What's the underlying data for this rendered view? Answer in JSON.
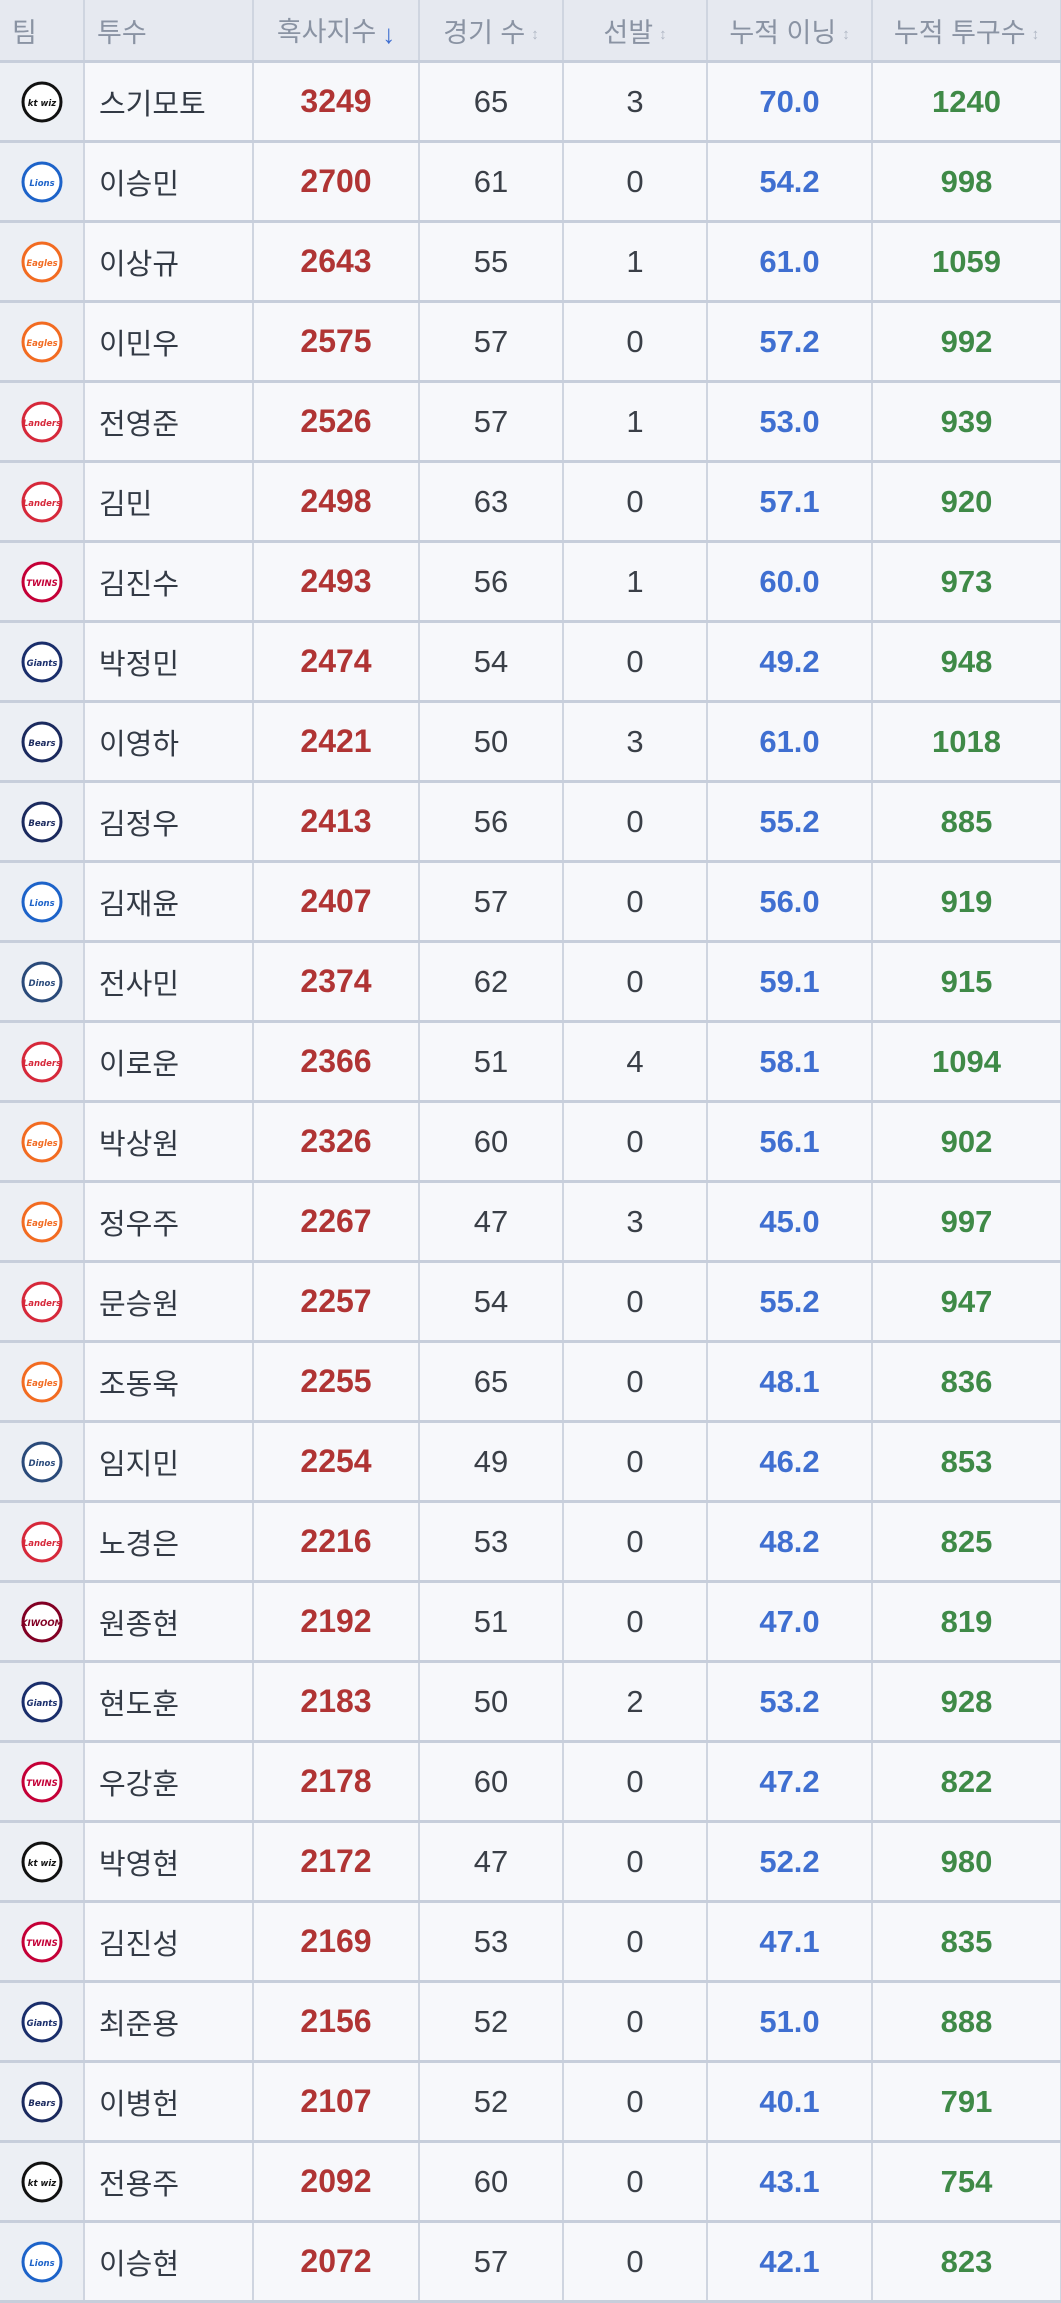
{
  "headers": {
    "team": "팀",
    "pitcher": "투수",
    "ksi": "혹사지수",
    "games": "경기 수",
    "starts": "선발",
    "innings": "누적 이닝",
    "pitches": "누적 투구수"
  },
  "sort": {
    "active_column": "ksi",
    "direction": "desc"
  },
  "team_logos": {
    "ktwiz": {
      "text": "kt wiz",
      "color": "#111111",
      "icon": "ktwiz-logo-icon"
    },
    "lions": {
      "text": "Lions",
      "color": "#1d63c9",
      "icon": "lions-logo-icon"
    },
    "eagles": {
      "text": "Eagles",
      "color": "#f26b21",
      "icon": "eagles-logo-icon"
    },
    "landers": {
      "text": "Landers",
      "color": "#d6283a",
      "icon": "landers-logo-icon"
    },
    "twins": {
      "text": "TWINS",
      "color": "#c40037",
      "icon": "twins-logo-icon"
    },
    "giants": {
      "text": "Giants",
      "color": "#1a2e6b",
      "icon": "giants-logo-icon"
    },
    "bears": {
      "text": "Bears",
      "color": "#1b2a5e",
      "icon": "bears-logo-icon"
    },
    "dinos": {
      "text": "Dinos",
      "color": "#2a4a7a",
      "icon": "dinos-logo-icon"
    },
    "kiwoom": {
      "text": "KIWOOM",
      "color": "#820024",
      "icon": "kiwoom-logo-icon"
    }
  },
  "rows": [
    {
      "team": "ktwiz",
      "name": "스기모토",
      "ksi": "3249",
      "games": "65",
      "starts": "3",
      "innings": "70.0",
      "pitches": "1240"
    },
    {
      "team": "lions",
      "name": "이승민",
      "ksi": "2700",
      "games": "61",
      "starts": "0",
      "innings": "54.2",
      "pitches": "998"
    },
    {
      "team": "eagles",
      "name": "이상규",
      "ksi": "2643",
      "games": "55",
      "starts": "1",
      "innings": "61.0",
      "pitches": "1059"
    },
    {
      "team": "eagles",
      "name": "이민우",
      "ksi": "2575",
      "games": "57",
      "starts": "0",
      "innings": "57.2",
      "pitches": "992"
    },
    {
      "team": "landers",
      "name": "전영준",
      "ksi": "2526",
      "games": "57",
      "starts": "1",
      "innings": "53.0",
      "pitches": "939"
    },
    {
      "team": "landers",
      "name": "김민",
      "ksi": "2498",
      "games": "63",
      "starts": "0",
      "innings": "57.1",
      "pitches": "920"
    },
    {
      "team": "twins",
      "name": "김진수",
      "ksi": "2493",
      "games": "56",
      "starts": "1",
      "innings": "60.0",
      "pitches": "973"
    },
    {
      "team": "giants",
      "name": "박정민",
      "ksi": "2474",
      "games": "54",
      "starts": "0",
      "innings": "49.2",
      "pitches": "948"
    },
    {
      "team": "bears",
      "name": "이영하",
      "ksi": "2421",
      "games": "50",
      "starts": "3",
      "innings": "61.0",
      "pitches": "1018"
    },
    {
      "team": "bears",
      "name": "김정우",
      "ksi": "2413",
      "games": "56",
      "starts": "0",
      "innings": "55.2",
      "pitches": "885"
    },
    {
      "team": "lions",
      "name": "김재윤",
      "ksi": "2407",
      "games": "57",
      "starts": "0",
      "innings": "56.0",
      "pitches": "919"
    },
    {
      "team": "dinos",
      "name": "전사민",
      "ksi": "2374",
      "games": "62",
      "starts": "0",
      "innings": "59.1",
      "pitches": "915"
    },
    {
      "team": "landers",
      "name": "이로운",
      "ksi": "2366",
      "games": "51",
      "starts": "4",
      "innings": "58.1",
      "pitches": "1094"
    },
    {
      "team": "eagles",
      "name": "박상원",
      "ksi": "2326",
      "games": "60",
      "starts": "0",
      "innings": "56.1",
      "pitches": "902"
    },
    {
      "team": "eagles",
      "name": "정우주",
      "ksi": "2267",
      "games": "47",
      "starts": "3",
      "innings": "45.0",
      "pitches": "997"
    },
    {
      "team": "landers",
      "name": "문승원",
      "ksi": "2257",
      "games": "54",
      "starts": "0",
      "innings": "55.2",
      "pitches": "947"
    },
    {
      "team": "eagles",
      "name": "조동욱",
      "ksi": "2255",
      "games": "65",
      "starts": "0",
      "innings": "48.1",
      "pitches": "836"
    },
    {
      "team": "dinos",
      "name": "임지민",
      "ksi": "2254",
      "games": "49",
      "starts": "0",
      "innings": "46.2",
      "pitches": "853"
    },
    {
      "team": "landers",
      "name": "노경은",
      "ksi": "2216",
      "games": "53",
      "starts": "0",
      "innings": "48.2",
      "pitches": "825"
    },
    {
      "team": "kiwoom",
      "name": "원종현",
      "ksi": "2192",
      "games": "51",
      "starts": "0",
      "innings": "47.0",
      "pitches": "819"
    },
    {
      "team": "giants",
      "name": "현도훈",
      "ksi": "2183",
      "games": "50",
      "starts": "2",
      "innings": "53.2",
      "pitches": "928"
    },
    {
      "team": "twins",
      "name": "우강훈",
      "ksi": "2178",
      "games": "60",
      "starts": "0",
      "innings": "47.2",
      "pitches": "822"
    },
    {
      "team": "ktwiz",
      "name": "박영현",
      "ksi": "2172",
      "games": "47",
      "starts": "0",
      "innings": "52.2",
      "pitches": "980"
    },
    {
      "team": "twins",
      "name": "김진성",
      "ksi": "2169",
      "games": "53",
      "starts": "0",
      "innings": "47.1",
      "pitches": "835"
    },
    {
      "team": "giants",
      "name": "최준용",
      "ksi": "2156",
      "games": "52",
      "starts": "0",
      "innings": "51.0",
      "pitches": "888"
    },
    {
      "team": "bears",
      "name": "이병헌",
      "ksi": "2107",
      "games": "52",
      "starts": "0",
      "innings": "40.1",
      "pitches": "791"
    },
    {
      "team": "ktwiz",
      "name": "전용주",
      "ksi": "2092",
      "games": "60",
      "starts": "0",
      "innings": "43.1",
      "pitches": "754"
    },
    {
      "team": "lions",
      "name": "이승현",
      "ksi": "2072",
      "games": "57",
      "starts": "0",
      "innings": "42.1",
      "pitches": "823"
    }
  ]
}
